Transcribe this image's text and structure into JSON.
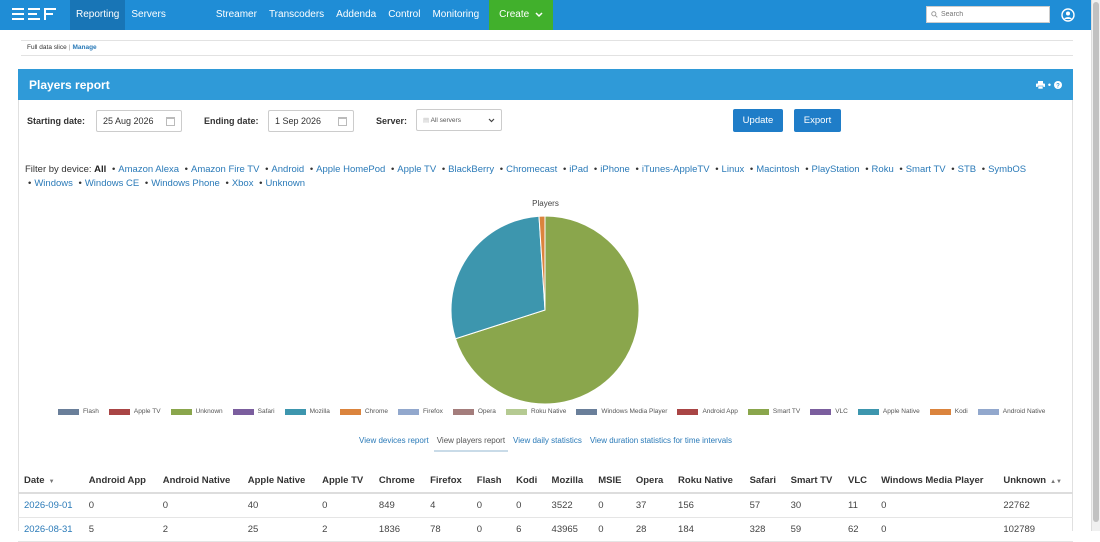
{
  "nav": {
    "logo_alt": "logo",
    "items": [
      "Reporting",
      "Servers",
      "Streamer",
      "Transcoders",
      "Addenda",
      "Control",
      "Monitoring"
    ],
    "create_label": "Create",
    "search_placeholder": "Search",
    "accent_color": "#1f8dd6",
    "create_color": "#41b02c"
  },
  "breadcrumb": {
    "slice": "Full data slice",
    "manage": "Manage"
  },
  "panel": {
    "title": "Players report"
  },
  "form": {
    "start_label": "Starting date:",
    "start_value": "25 Aug 2026",
    "end_label": "Ending date:",
    "end_value": "1 Sep 2026",
    "server_label": "Server:",
    "server_value": "All servers",
    "update_label": "Update",
    "export_label": "Export"
  },
  "filter": {
    "prefix": "Filter by device:",
    "selected": "All",
    "devices": [
      "Amazon Alexa",
      "Amazon Fire TV",
      "Android",
      "Apple HomePod",
      "Apple TV",
      "BlackBerry",
      "Chromecast",
      "iPad",
      "iPhone",
      "iTunes-AppleTV",
      "Linux",
      "Macintosh",
      "PlayStation",
      "Roku",
      "Smart TV",
      "STB",
      "SymbOS",
      "Windows",
      "Windows CE",
      "Windows Phone",
      "Xbox",
      "Unknown"
    ]
  },
  "chart_data": {
    "type": "pie",
    "title": "Players",
    "slices": [
      {
        "name": "Unknown",
        "value": 22762,
        "color": "#8aa64c"
      },
      {
        "name": "Mozilla",
        "value": 9400,
        "color": "#3d96ae"
      },
      {
        "name": "Chrome",
        "value": 330,
        "color": "#db843d"
      }
    ],
    "legend": [
      {
        "name": "Flash",
        "color": "#6a7f9a"
      },
      {
        "name": "Apple TV",
        "color": "#a94545"
      },
      {
        "name": "Unknown",
        "color": "#8aa64c"
      },
      {
        "name": "Safari",
        "color": "#7b5e9e"
      },
      {
        "name": "Mozilla",
        "color": "#3d96ae"
      },
      {
        "name": "Chrome",
        "color": "#db843d"
      },
      {
        "name": "Firefox",
        "color": "#92a8cd"
      },
      {
        "name": "Opera",
        "color": "#a47d7c"
      },
      {
        "name": "Roku Native",
        "color": "#b5ca92"
      },
      {
        "name": "Windows Media Player",
        "color": "#6a7f9a"
      },
      {
        "name": "Android App",
        "color": "#a94545"
      },
      {
        "name": "Smart TV",
        "color": "#8aa64c"
      },
      {
        "name": "VLC",
        "color": "#7b5e9e"
      },
      {
        "name": "Apple Native",
        "color": "#3d96ae"
      },
      {
        "name": "Kodi",
        "color": "#db843d"
      },
      {
        "name": "Android Native",
        "color": "#92a8cd"
      }
    ],
    "legend_position": "bottom"
  },
  "tabs": [
    "View devices report",
    "View players report",
    "View daily statistics",
    "View duration statistics for time intervals"
  ],
  "active_tab": 1,
  "table": {
    "columns": [
      "Date",
      "Android App",
      "Android Native",
      "Apple Native",
      "Apple TV",
      "Chrome",
      "Firefox",
      "Flash",
      "Kodi",
      "Mozilla",
      "MSIE",
      "Opera",
      "Roku Native",
      "Safari",
      "Smart TV",
      "VLC",
      "Windows Media Player",
      "Unknown"
    ],
    "rows": [
      [
        "2026-09-01",
        "0",
        "0",
        "40",
        "0",
        "849",
        "4",
        "0",
        "0",
        "3522",
        "0",
        "37",
        "156",
        "57",
        "30",
        "11",
        "0",
        "22762"
      ],
      [
        "2026-08-31",
        "5",
        "2",
        "25",
        "2",
        "1836",
        "78",
        "0",
        "6",
        "43965",
        "0",
        "28",
        "184",
        "328",
        "59",
        "62",
        "0",
        "102789"
      ]
    ]
  }
}
